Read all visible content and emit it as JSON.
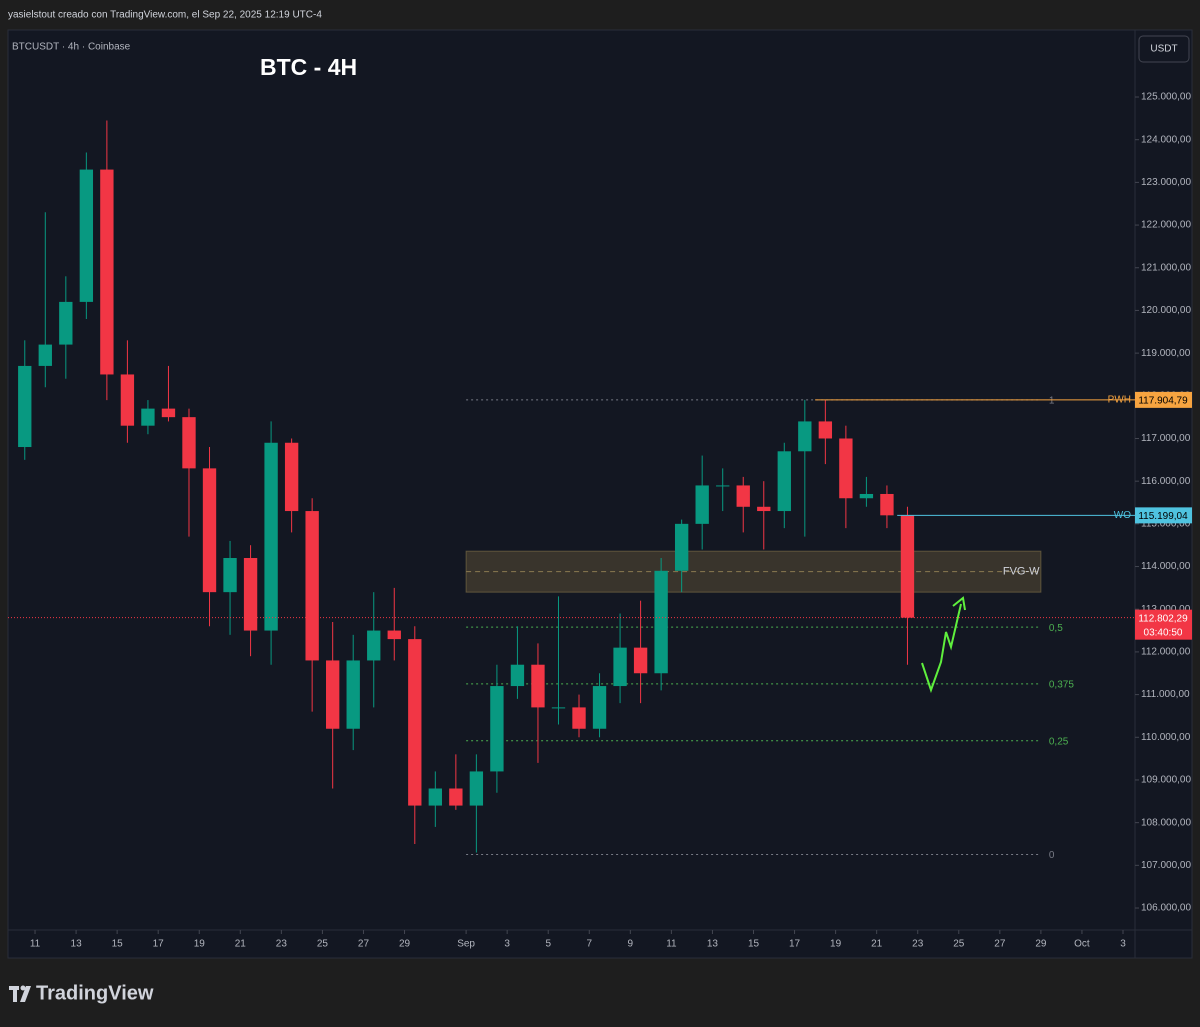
{
  "chart_data": {
    "type": "candlestick",
    "header": "yasielstout creado con TradingView.com, el Sep 22, 2025 12:19 UTC-4",
    "symbol_label": "BTCUSDT · 4h · Coinbase",
    "title": "BTC - 4H",
    "currency": "USDT",
    "brand": "TradingView",
    "up_color": "#089981",
    "down_color": "#f23645",
    "candles": {
      "x": [
        "Aug 10",
        "Aug 11",
        "Aug 12",
        "Aug 13",
        "Aug 14",
        "Aug 15",
        "Aug 16",
        "Aug 17",
        "Aug 18",
        "Aug 19",
        "Aug 20",
        "Aug 21",
        "Aug 22",
        "Aug 23",
        "Aug 24",
        "Aug 25",
        "Aug 26",
        "Aug 27",
        "Aug 28",
        "Aug 29",
        "Aug 30",
        "Aug 31",
        "Sep 1",
        "Sep 2",
        "Sep 3",
        "Sep 4",
        "Sep 5",
        "Sep 6",
        "Sep 7",
        "Sep 8",
        "Sep 9",
        "Sep 10",
        "Sep 11",
        "Sep 12",
        "Sep 13",
        "Sep 14",
        "Sep 15",
        "Sep 16",
        "Sep 17",
        "Sep 18",
        "Sep 19",
        "Sep 20",
        "Sep 21",
        "Sep 22"
      ],
      "open": [
        116800,
        118700,
        119200,
        120200,
        123300,
        118500,
        117300,
        117700,
        117500,
        116300,
        113400,
        114200,
        112500,
        116900,
        115300,
        111800,
        110200,
        111800,
        112500,
        112300,
        108400,
        108800,
        108400,
        109200,
        111200,
        111700,
        110700,
        110700,
        110200,
        111200,
        112100,
        111500,
        113900,
        115000,
        115900,
        115900,
        115400,
        115300,
        116700,
        117400,
        117000,
        115600,
        115700,
        115200
      ],
      "high": [
        119300,
        122300,
        120800,
        123700,
        124450,
        119300,
        117900,
        118700,
        117700,
        116800,
        114600,
        114500,
        117400,
        117000,
        115600,
        112700,
        112400,
        113400,
        113500,
        112600,
        109200,
        109600,
        109600,
        111700,
        112600,
        112200,
        113300,
        111000,
        111500,
        112900,
        113200,
        114200,
        115100,
        116600,
        116300,
        116100,
        116000,
        116900,
        117904,
        117900,
        117300,
        116100,
        115900,
        115400
      ],
      "low": [
        116500,
        118200,
        118400,
        119800,
        117900,
        116900,
        117100,
        117400,
        114700,
        112600,
        112400,
        111900,
        111700,
        114800,
        110600,
        108800,
        109700,
        110700,
        111800,
        107500,
        107900,
        108300,
        107300,
        108700,
        110900,
        109400,
        110300,
        110000,
        110000,
        110800,
        110800,
        111100,
        113400,
        114400,
        115300,
        114800,
        114400,
        114900,
        114700,
        116400,
        114900,
        115400,
        114900,
        111700
      ],
      "close": [
        118700,
        119200,
        120200,
        123300,
        118500,
        117300,
        117700,
        117500,
        116300,
        113400,
        114200,
        112500,
        116900,
        115300,
        111800,
        110200,
        111800,
        112500,
        112300,
        108400,
        108800,
        108400,
        109200,
        111200,
        111700,
        110700,
        110700,
        110200,
        111200,
        112100,
        111500,
        113900,
        115000,
        115900,
        115900,
        115400,
        115300,
        116700,
        117400,
        117000,
        115600,
        115700,
        115200,
        112802.29
      ]
    },
    "xlim": [
      "Aug 10",
      "Oct 3"
    ],
    "xticks": [
      {
        "value": "Aug 11",
        "label": "11"
      },
      {
        "value": "Aug 13",
        "label": "13"
      },
      {
        "value": "Aug 15",
        "label": "15"
      },
      {
        "value": "Aug 17",
        "label": "17"
      },
      {
        "value": "Aug 19",
        "label": "19"
      },
      {
        "value": "Aug 21",
        "label": "21"
      },
      {
        "value": "Aug 23",
        "label": "23"
      },
      {
        "value": "Aug 25",
        "label": "25"
      },
      {
        "value": "Aug 27",
        "label": "27"
      },
      {
        "value": "Aug 29",
        "label": "29"
      },
      {
        "value": "Sep 1",
        "label": "Sep"
      },
      {
        "value": "Sep 3",
        "label": "3"
      },
      {
        "value": "Sep 5",
        "label": "5"
      },
      {
        "value": "Sep 7",
        "label": "7"
      },
      {
        "value": "Sep 9",
        "label": "9"
      },
      {
        "value": "Sep 11",
        "label": "11"
      },
      {
        "value": "Sep 13",
        "label": "13"
      },
      {
        "value": "Sep 15",
        "label": "15"
      },
      {
        "value": "Sep 17",
        "label": "17"
      },
      {
        "value": "Sep 19",
        "label": "19"
      },
      {
        "value": "Sep 21",
        "label": "21"
      },
      {
        "value": "Sep 23",
        "label": "23"
      },
      {
        "value": "Sep 25",
        "label": "25"
      },
      {
        "value": "Sep 27",
        "label": "27"
      },
      {
        "value": "Sep 29",
        "label": "29"
      },
      {
        "value": "Oct 1",
        "label": "Oct"
      },
      {
        "value": "Oct 3",
        "label": "3"
      }
    ],
    "ylim": [
      105485,
      126570
    ],
    "yticks": [
      {
        "value": 106000,
        "label": "106.000,00"
      },
      {
        "value": 107000,
        "label": "107.000,00"
      },
      {
        "value": 108000,
        "label": "108.000,00"
      },
      {
        "value": 109000,
        "label": "109.000,00"
      },
      {
        "value": 110000,
        "label": "110.000,00"
      },
      {
        "value": 111000,
        "label": "111.000,00"
      },
      {
        "value": 112000,
        "label": "112.000,00"
      },
      {
        "value": 113000,
        "label": "113.000,00"
      },
      {
        "value": 114000,
        "label": "114.000,00"
      },
      {
        "value": 115000,
        "label": "115.000,00"
      },
      {
        "value": 116000,
        "label": "116.000,00"
      },
      {
        "value": 117000,
        "label": "117.000,00"
      },
      {
        "value": 118000,
        "label": "118.000,00"
      },
      {
        "value": 119000,
        "label": "119.000,00"
      },
      {
        "value": 120000,
        "label": "120.000,00"
      },
      {
        "value": 121000,
        "label": "121.000,00"
      },
      {
        "value": 122000,
        "label": "122.000,00"
      },
      {
        "value": 123000,
        "label": "123.000,00"
      },
      {
        "value": 124000,
        "label": "124.000,00"
      },
      {
        "value": 125000,
        "label": "125.000,00"
      }
    ],
    "last_price": {
      "value": 112802.29,
      "label": "112.802,29",
      "countdown": "03:40:50",
      "color": "#f23645"
    },
    "levels": [
      {
        "name": "PWH",
        "value": 117904.79,
        "label": "117.904,79",
        "from": "Sep 18",
        "color": "#f7a440"
      },
      {
        "name": "WO",
        "value": 115199.04,
        "label": "115.199,04",
        "from": "Sep 22",
        "color": "#4fc3e0"
      }
    ],
    "fvg": {
      "label": "FVG-W",
      "top": 114360,
      "bottom": 113400,
      "from": "Sep 1",
      "to": "Sep 29"
    },
    "fib": {
      "from": "Sep 1",
      "to": "Sep 29",
      "levels": [
        {
          "label": "1",
          "value": 117904.79,
          "color": "#787b86"
        },
        {
          "label": "0,5",
          "value": 112580,
          "color": "#4caf50"
        },
        {
          "label": "0,375",
          "value": 111250,
          "color": "#4caf50"
        },
        {
          "label": "0,25",
          "value": 109918,
          "color": "#4caf50"
        },
        {
          "label": "0",
          "value": 107255,
          "color": "#787b86"
        }
      ]
    }
  }
}
